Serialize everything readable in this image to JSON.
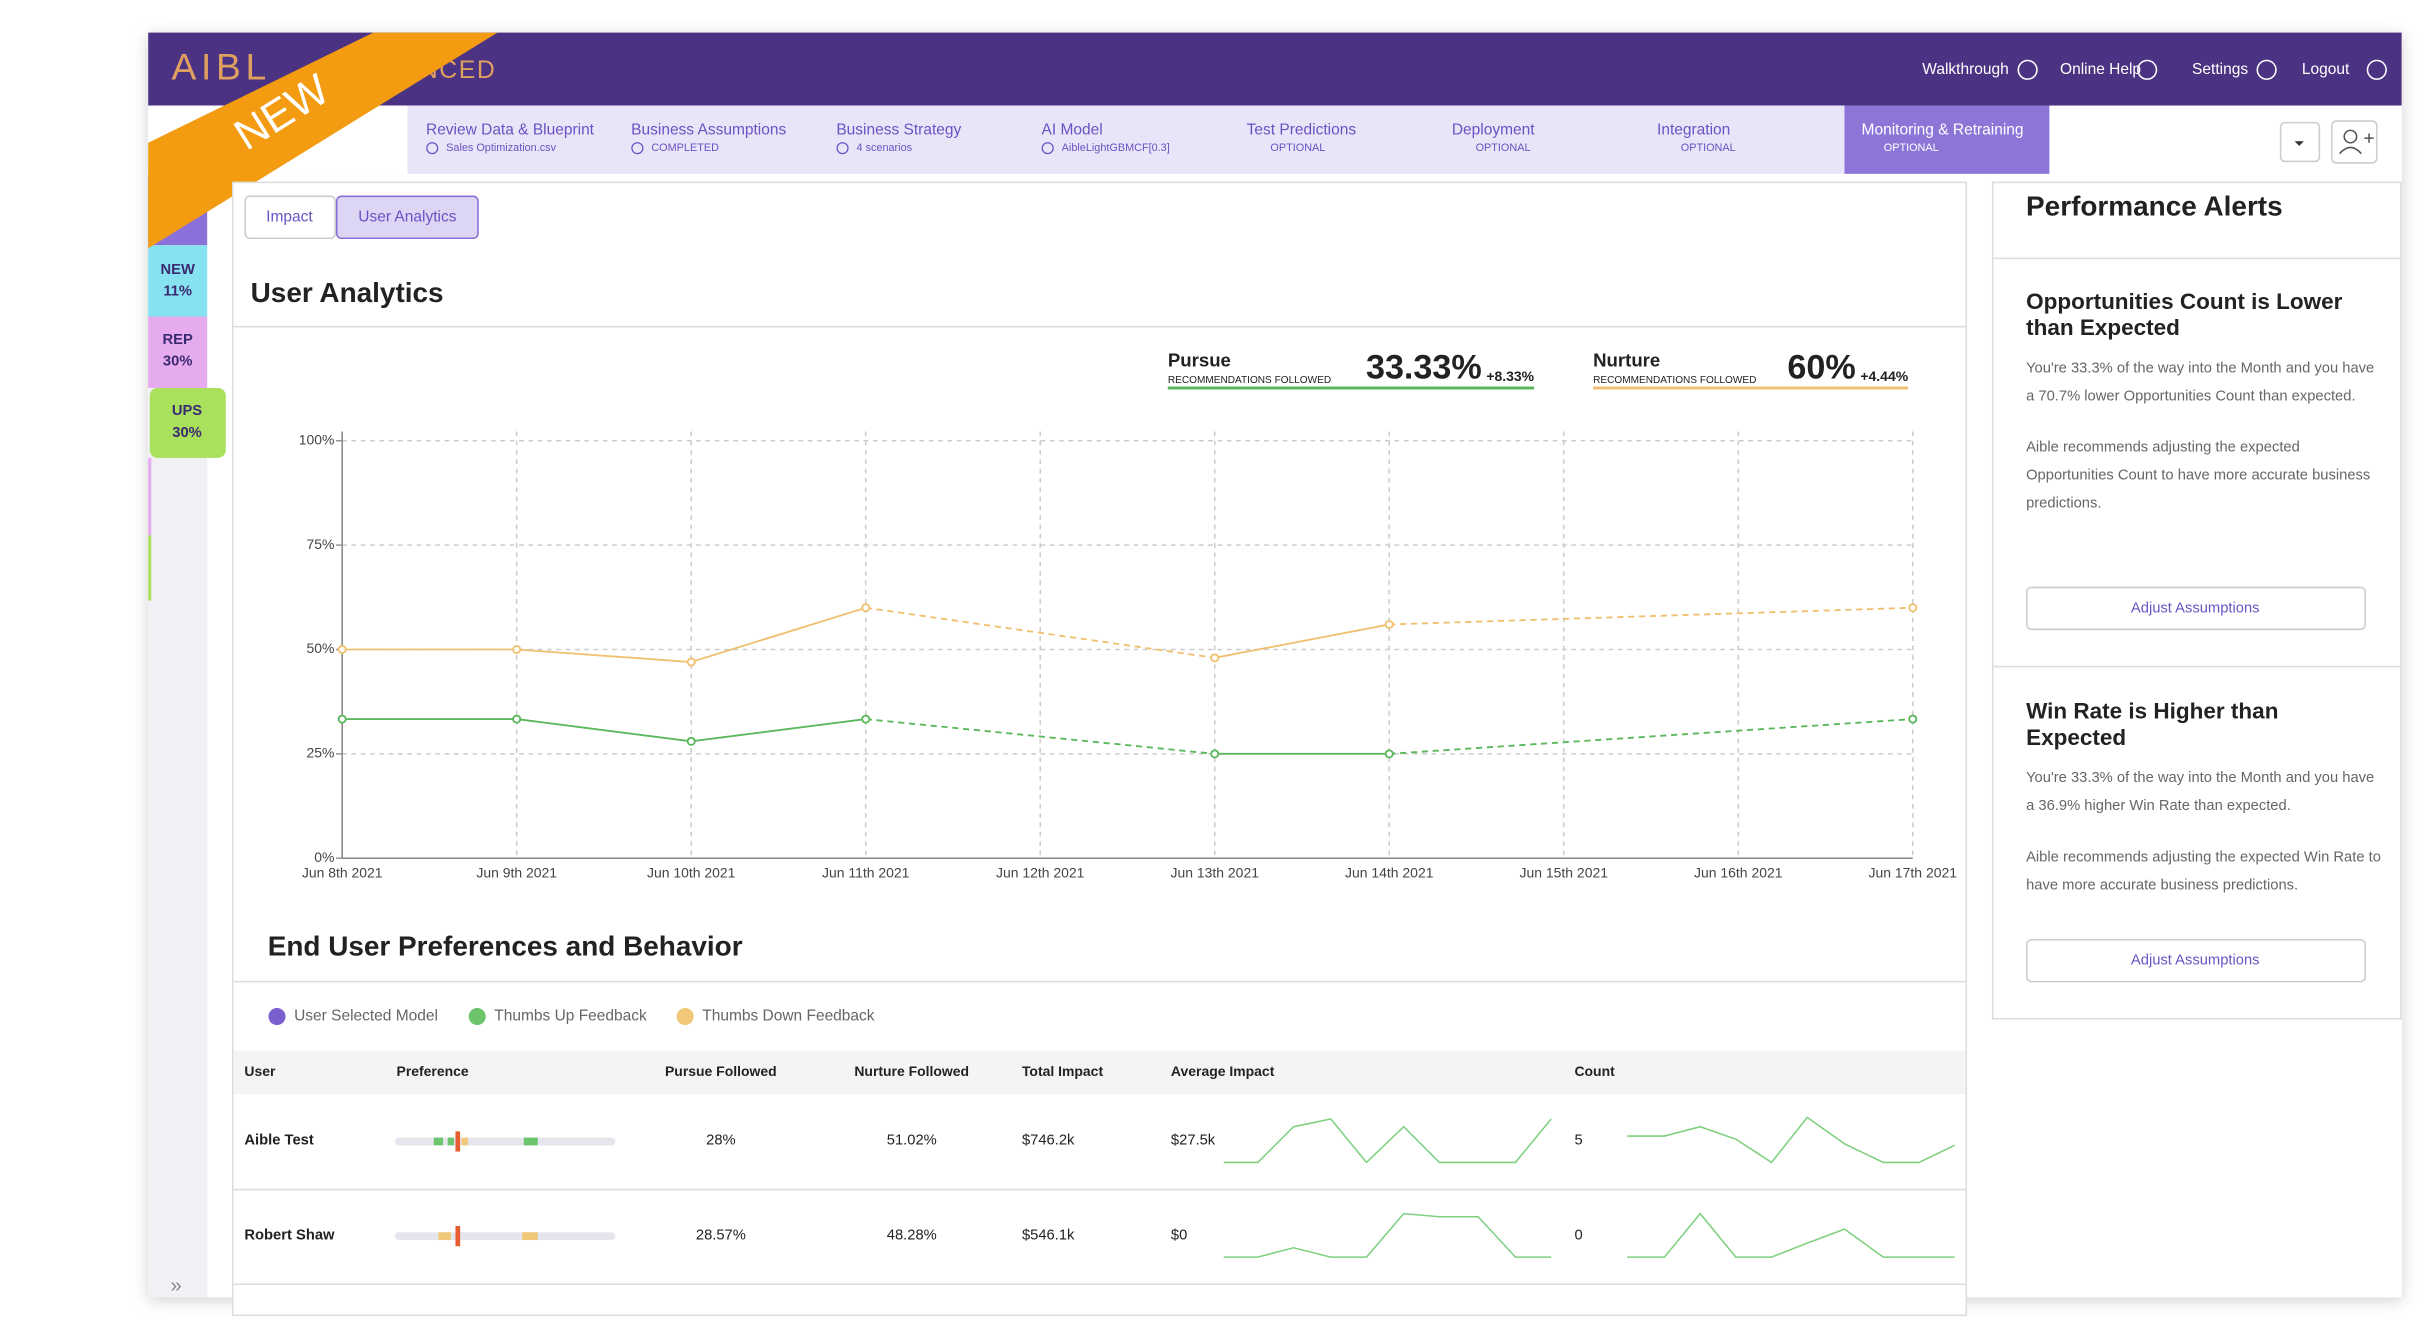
{
  "brand": {
    "logo": "AIBL",
    "logo_tail": "NCED",
    "ribbon": "NEW"
  },
  "header_links": [
    "Walkthrough",
    "Online Help",
    "Settings",
    "Logout"
  ],
  "steps": [
    {
      "label": "Review Data & Blueprint",
      "sub": "Sales Optimization.csv"
    },
    {
      "label": "Business Assumptions",
      "sub": "COMPLETED"
    },
    {
      "label": "Business Strategy",
      "sub": "4 scenarios"
    },
    {
      "label": "AI Model",
      "sub": "AibleLightGBMCF[0.3]"
    },
    {
      "label": "Test Predictions",
      "sub": "OPTIONAL"
    },
    {
      "label": "Deployment",
      "sub": "OPTIONAL"
    },
    {
      "label": "Integration",
      "sub": "OPTIONAL"
    },
    {
      "label": "Monitoring & Retraining",
      "sub": "OPTIONAL"
    }
  ],
  "sidebar": [
    {
      "code": "NEW",
      "pct": "11%"
    },
    {
      "code": "REP",
      "pct": "30%"
    },
    {
      "code": "UPS",
      "pct": "30%"
    }
  ],
  "tabs": [
    "Impact",
    "User Analytics"
  ],
  "section_title": "User Analytics",
  "kpis": [
    {
      "name": "Pursue",
      "caption": "RECOMMENDATIONS FOLLOWED",
      "value": "33.33%",
      "delta": "+8.33%"
    },
    {
      "name": "Nurture",
      "caption": "RECOMMENDATIONS FOLLOWED",
      "value": "60%",
      "delta": "+4.44%"
    }
  ],
  "chart_data": {
    "type": "line",
    "categories": [
      "Jun 8th 2021",
      "Jun 9th 2021",
      "Jun 10th 2021",
      "Jun 11th 2021",
      "Jun 12th 2021",
      "Jun 13th 2021",
      "Jun 14th 2021",
      "Jun 15th 2021",
      "Jun 16th 2021",
      "Jun 17th 2021"
    ],
    "series": [
      {
        "name": "Pursue",
        "color": "#5cb85c",
        "values": [
          33.33,
          33.33,
          28,
          33.33,
          null,
          25,
          25,
          null,
          null,
          33.33
        ]
      },
      {
        "name": "Nurture",
        "color": "#f0c070",
        "values": [
          50,
          50,
          47,
          60,
          null,
          48,
          56,
          null,
          null,
          60
        ]
      }
    ],
    "ylim": [
      0,
      100
    ],
    "yticks": [
      {
        "value": 0,
        "label": "0%"
      },
      {
        "value": 25,
        "label": "25%"
      },
      {
        "value": 50,
        "label": "50%"
      },
      {
        "value": 75,
        "label": "75%"
      },
      {
        "value": 100,
        "label": "100%"
      }
    ],
    "grid": true
  },
  "behavior": {
    "title": "End User Preferences and Behavior",
    "legend": [
      {
        "name": "User Selected Model",
        "color": "#7a5fcf"
      },
      {
        "name": "Thumbs Up Feedback",
        "color": "#6cc46c"
      },
      {
        "name": "Thumbs Down Feedback",
        "color": "#f0c878"
      }
    ],
    "table": {
      "headers": [
        "User",
        "Preference",
        "Pursue Followed",
        "Nurture Followed",
        "Total Impact",
        "Average Impact",
        "Count"
      ],
      "rows": [
        [
          "Aible Test",
          "28%",
          "51.02%",
          "$746.2k",
          "$27.5k",
          "5"
        ],
        [
          "Robert Shaw",
          "28.57%",
          "48.28%",
          "$546.1k",
          "$0",
          "0"
        ]
      ]
    }
  },
  "alerts": {
    "title": "Performance Alerts",
    "cards": [
      {
        "title": "Opportunities Count is Lower than Expected",
        "text1": "You're 33.3% of the way into the Month and you have a 70.7% lower Opportunities Count than expected.",
        "text2": "Aible recommends adjusting the expected Opportunities Count to have more accurate business predictions.",
        "button": "Adjust Assumptions"
      },
      {
        "title": "Win Rate is Higher than Expected",
        "text1": "You're 33.3% of the way into the Month and you have a 36.9% higher Win Rate than expected.",
        "text2": "Aible recommends adjusting the expected Win Rate to have more accurate business predictions.",
        "button": "Adjust Assumptions"
      }
    ]
  }
}
